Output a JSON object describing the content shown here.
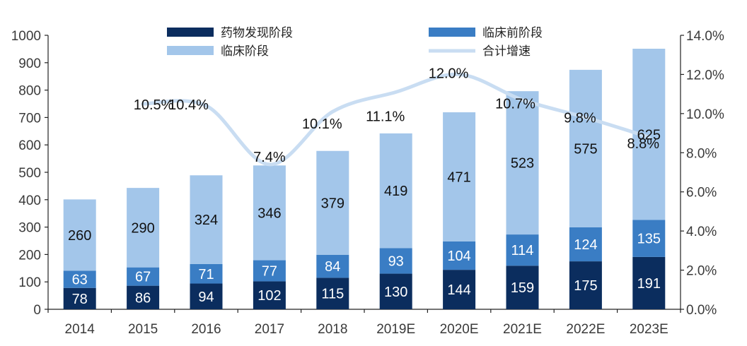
{
  "chart_data": {
    "type": "bar",
    "stacked": true,
    "categories": [
      "2014",
      "2015",
      "2016",
      "2017",
      "2018",
      "2019E",
      "2020E",
      "2021E",
      "2022E",
      "2023E"
    ],
    "series": [
      {
        "name": "药物发现阶段",
        "color": "#0b2d5e",
        "label_color": "#ffffff",
        "values": [
          78,
          86,
          94,
          102,
          115,
          130,
          144,
          159,
          175,
          191
        ]
      },
      {
        "name": "临床前阶段",
        "color": "#3a7dc4",
        "label_color": "#ffffff",
        "values": [
          63,
          67,
          71,
          77,
          84,
          93,
          104,
          114,
          124,
          135
        ]
      },
      {
        "name": "临床阶段",
        "color": "#a3c6ea",
        "label_color": "#111111",
        "values": [
          260,
          290,
          324,
          346,
          379,
          419,
          471,
          523,
          575,
          625
        ]
      }
    ],
    "line_series": {
      "name": "合计增速",
      "color": "#c9ddf2",
      "axis": "right",
      "x_categories": [
        "2015",
        "2016",
        "2017",
        "2018",
        "2019E",
        "2020E",
        "2021E",
        "2022E",
        "2023E"
      ],
      "values": [
        10.5,
        10.4,
        7.4,
        10.1,
        11.1,
        12.0,
        10.7,
        9.8,
        8.8
      ],
      "labels": [
        "10.5%",
        "10.4%",
        "7.4%",
        "10.1%",
        "11.1%",
        "12.0%",
        "10.7%",
        "9.8%",
        "8.8%"
      ]
    },
    "y_left": {
      "min": 0,
      "max": 1000,
      "step": 100,
      "ticks": [
        "0",
        "100",
        "200",
        "300",
        "400",
        "500",
        "600",
        "700",
        "800",
        "900",
        "1000"
      ]
    },
    "y_right": {
      "min": 0,
      "max": 14,
      "step": 2,
      "ticks": [
        "0.0%",
        "2.0%",
        "4.0%",
        "6.0%",
        "8.0%",
        "10.0%",
        "12.0%",
        "14.0%"
      ]
    },
    "legend": {
      "position": "top",
      "entries": [
        {
          "name": "药物发现阶段",
          "kind": "bar",
          "color": "#0b2d5e"
        },
        {
          "name": "临床前阶段",
          "kind": "bar",
          "color": "#3a7dc4"
        },
        {
          "name": "临床阶段",
          "kind": "bar",
          "color": "#a3c6ea"
        },
        {
          "name": "合计增速",
          "kind": "line",
          "color": "#c9ddf2"
        }
      ]
    },
    "title": "",
    "xlabel": "",
    "ylabel": ""
  }
}
